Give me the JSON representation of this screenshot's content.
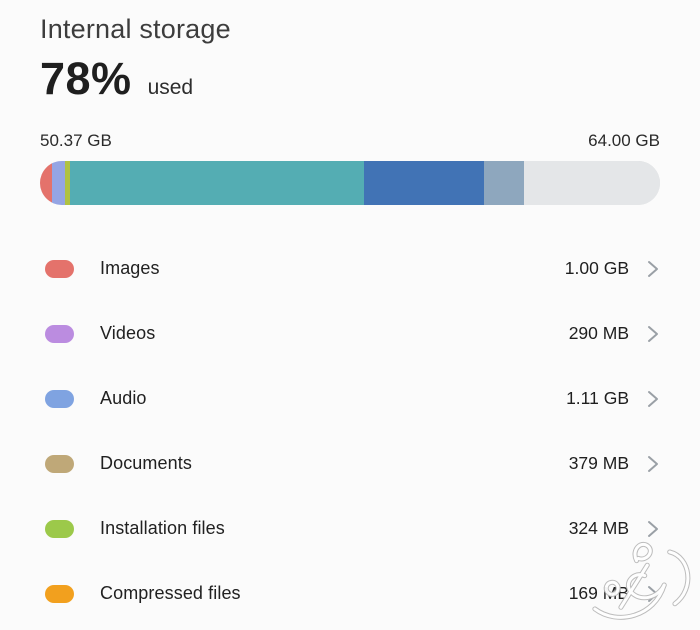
{
  "header": {
    "title": "Internal storage",
    "percent_used": "78%",
    "used_word": "used"
  },
  "storage_bar": {
    "used_label": "50.37 GB",
    "total_label": "64.00 GB",
    "segments": [
      {
        "name": "salmon",
        "color": "#e4726b",
        "percent": 1.9
      },
      {
        "name": "periwinkle",
        "color": "#95a5e4",
        "percent": 2.1
      },
      {
        "name": "olive",
        "color": "#b0c242",
        "percent": 0.9
      },
      {
        "name": "teal",
        "color": "#54adb3",
        "percent": 47.4
      },
      {
        "name": "blue",
        "color": "#4173b5",
        "percent": 19.3
      },
      {
        "name": "gray-blue",
        "color": "#8ea7be",
        "percent": 6.4
      },
      {
        "name": "free-space",
        "color": "#e4e6e8",
        "percent": 22.0
      }
    ]
  },
  "rows": [
    {
      "label": "Images",
      "value": "1.00 GB",
      "color": "#e4726b"
    },
    {
      "label": "Videos",
      "value": "290 MB",
      "color": "#bb8ce0"
    },
    {
      "label": "Audio",
      "value": "1.11 GB",
      "color": "#7fa3e1"
    },
    {
      "label": "Documents",
      "value": "379 MB",
      "color": "#bfa878"
    },
    {
      "label": "Installation files",
      "value": "324 MB",
      "color": "#9cc94a"
    },
    {
      "label": "Compressed files",
      "value": "169 MB",
      "color": "#f2a01e"
    }
  ],
  "colors": {
    "chevron": "#9aa0a6",
    "background": "#fbfbfb"
  }
}
